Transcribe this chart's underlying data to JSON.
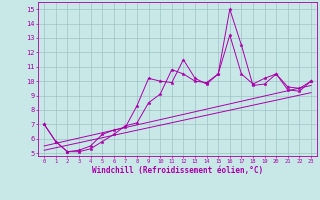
{
  "xlabel": "Windchill (Refroidissement éolien,°C)",
  "xlim": [
    -0.5,
    23.5
  ],
  "ylim": [
    4.8,
    15.5
  ],
  "xticks": [
    0,
    1,
    2,
    3,
    4,
    5,
    6,
    7,
    8,
    9,
    10,
    11,
    12,
    13,
    14,
    15,
    16,
    17,
    18,
    19,
    20,
    21,
    22,
    23
  ],
  "yticks": [
    5,
    6,
    7,
    8,
    9,
    10,
    11,
    12,
    13,
    14,
    15
  ],
  "bg_color": "#c8e8e8",
  "line_color": "#aa00aa",
  "grid_color": "#99bbbb",
  "lines": [
    {
      "x": [
        0,
        1,
        2,
        3,
        4,
        5,
        6,
        7,
        8,
        9,
        10,
        11,
        12,
        13,
        14,
        15,
        16,
        17,
        18,
        19,
        20,
        21,
        22,
        23
      ],
      "y": [
        7.0,
        5.8,
        5.1,
        5.2,
        5.5,
        6.3,
        6.6,
        6.8,
        8.3,
        10.2,
        10.0,
        9.9,
        11.5,
        10.2,
        9.8,
        10.5,
        15.0,
        12.5,
        9.7,
        9.8,
        10.5,
        9.4,
        9.3,
        10.0
      ],
      "marker": true
    },
    {
      "x": [
        0,
        1,
        2,
        3,
        4,
        5,
        6,
        7,
        8,
        9,
        10,
        11,
        12,
        13,
        14,
        15,
        16,
        17,
        18,
        19,
        20,
        21,
        22,
        23
      ],
      "y": [
        7.0,
        5.8,
        5.1,
        5.1,
        5.3,
        5.8,
        6.3,
        6.9,
        7.1,
        8.5,
        9.1,
        10.8,
        10.5,
        10.0,
        9.9,
        10.5,
        13.2,
        10.5,
        9.8,
        10.2,
        10.5,
        9.6,
        9.5,
        10.0
      ],
      "marker": true
    },
    {
      "x": [
        0,
        23
      ],
      "y": [
        5.5,
        9.7
      ],
      "marker": false
    },
    {
      "x": [
        0,
        23
      ],
      "y": [
        5.2,
        9.2
      ],
      "marker": false
    }
  ]
}
